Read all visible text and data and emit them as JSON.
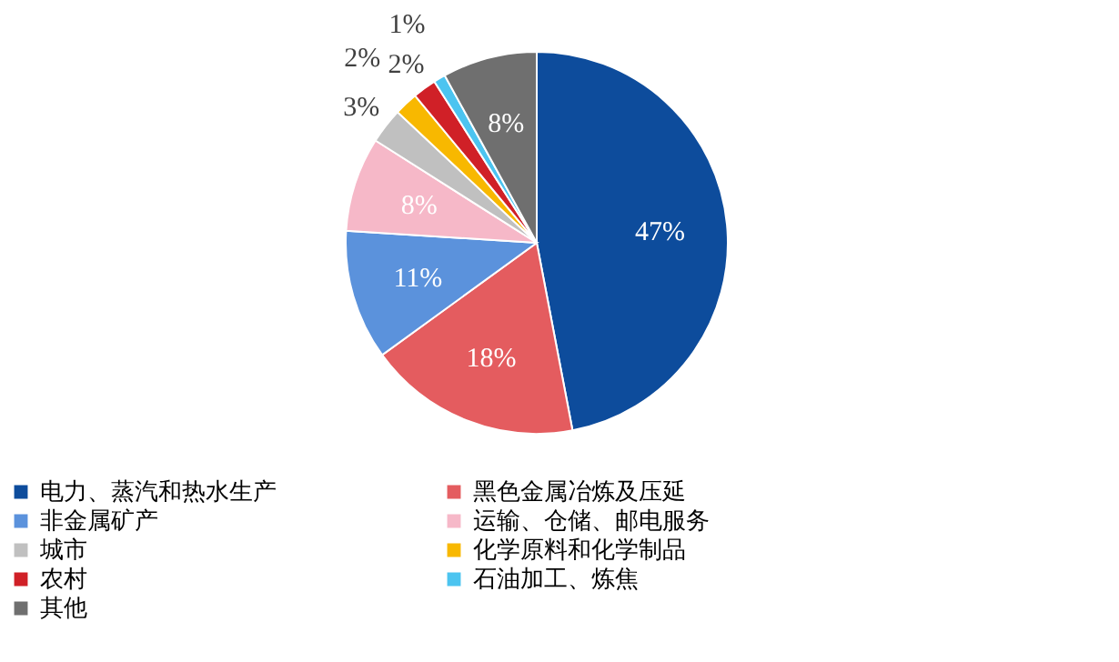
{
  "chart_data": {
    "type": "pie",
    "categories": [
      "电力、蒸汽和热水生产",
      "黑色金属冶炼及压延",
      "非金属矿产",
      "运输、仓储、邮电服务",
      "城市",
      "化学原料和化学制品",
      "农村",
      "石油加工、炼焦",
      "其他"
    ],
    "values": [
      47,
      18,
      11,
      8,
      3,
      2,
      2,
      1,
      8
    ],
    "colors": [
      "#0d4c9c",
      "#e45c5f",
      "#5b92dc",
      "#f6b8c8",
      "#c0c0c0",
      "#f8b800",
      "#d02027",
      "#4cc4f0",
      "#6f6f6f"
    ],
    "value_labels": [
      "47%",
      "18%",
      "11%",
      "8%",
      "3%",
      "2%",
      "2%",
      "1%",
      "8%"
    ],
    "legend": "bottom"
  }
}
